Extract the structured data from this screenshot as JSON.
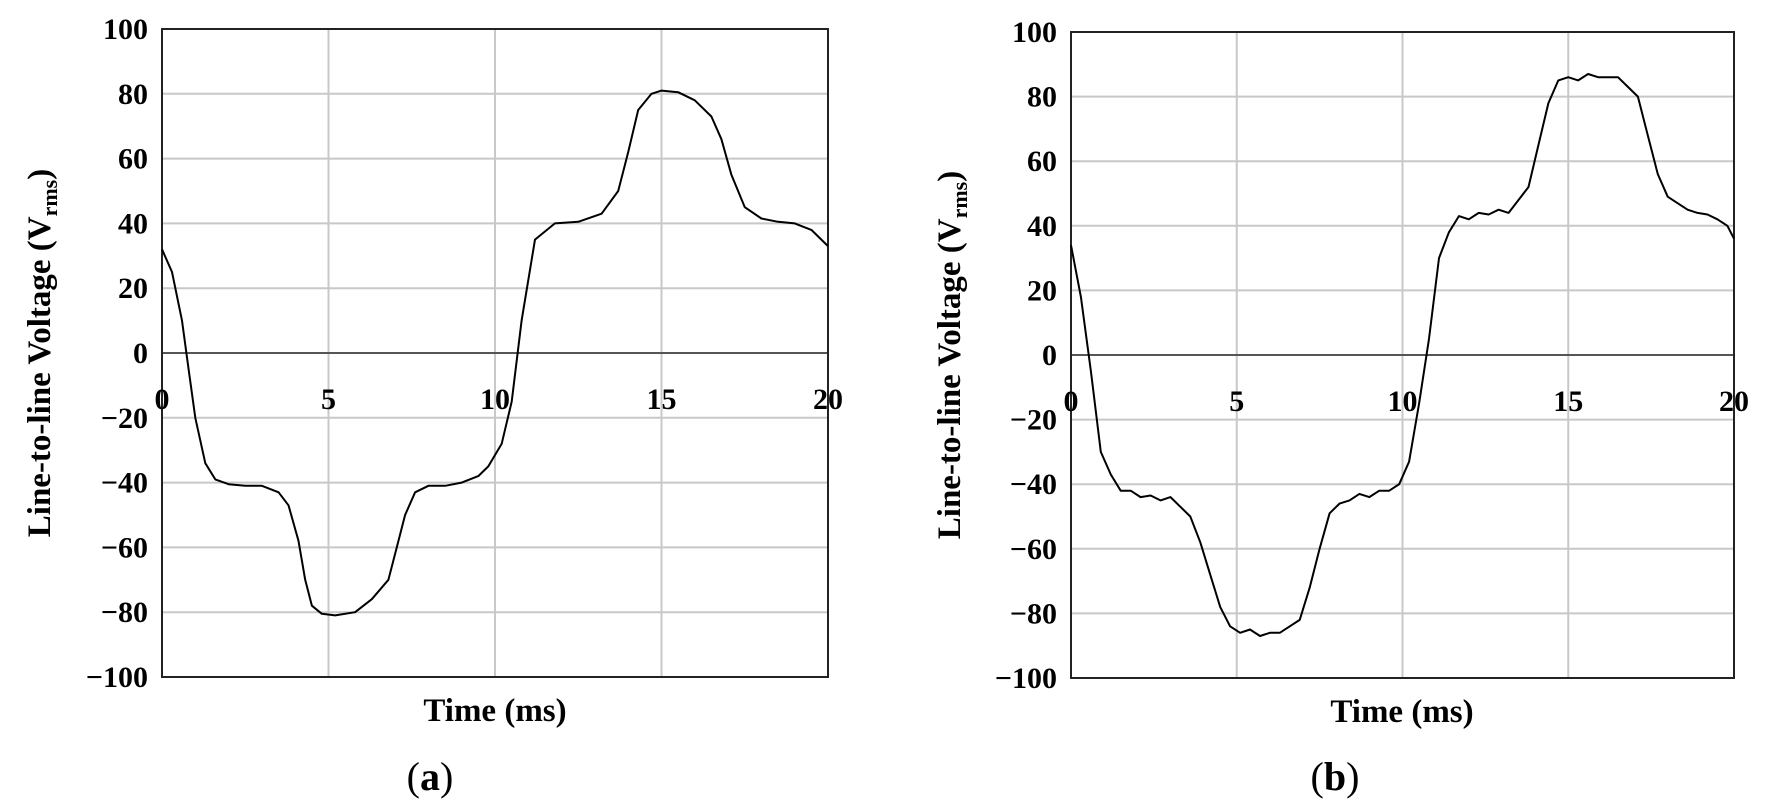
{
  "chart_data": [
    {
      "type": "line",
      "panel_label": "a",
      "xlabel": "Time (ms)",
      "ylabel": "Line-to-line Voltage (V",
      "ylabel_sub": "rms",
      "ylabel_close": ")",
      "xlim": [
        0,
        20
      ],
      "ylim": [
        -100,
        100
      ],
      "xticks": [
        0,
        5,
        10,
        15,
        20
      ],
      "yticks": [
        -100,
        -80,
        -60,
        -40,
        -20,
        0,
        20,
        40,
        60,
        80,
        100
      ],
      "grid": true,
      "series": [
        {
          "x": [
            0,
            0.3,
            0.6,
            0.8,
            1.0,
            1.3,
            1.6,
            2.0,
            2.5,
            3.0,
            3.5,
            3.8,
            4.1,
            4.3,
            4.5,
            4.8,
            5.2,
            5.8,
            6.3,
            6.8,
            7.0,
            7.3,
            7.6,
            8.0,
            8.5,
            9.0,
            9.5,
            9.8,
            10.2,
            10.5,
            10.8,
            11.2,
            11.8,
            12.5,
            13.2,
            13.7,
            14.0,
            14.3,
            14.7,
            15.0,
            15.5,
            16.0,
            16.5,
            16.8,
            17.1,
            17.5,
            18.0,
            18.5,
            19.0,
            19.5,
            20.0
          ],
          "y": [
            32,
            25,
            10,
            -5,
            -20,
            -34,
            -39,
            -40.5,
            -41,
            -41,
            -43,
            -47,
            -58,
            -70,
            -78,
            -80.5,
            -81,
            -80,
            -76,
            -70,
            -62,
            -50,
            -43,
            -41,
            -41,
            -40,
            -38,
            -35,
            -28,
            -15,
            10,
            35,
            40,
            40.5,
            43,
            50,
            62,
            75,
            80,
            81,
            80.5,
            78,
            73,
            66,
            55,
            45,
            41.5,
            40.5,
            40,
            38,
            33
          ]
        }
      ]
    },
    {
      "type": "line",
      "panel_label": "b",
      "xlabel": "Time (ms)",
      "ylabel": "Line-to-line Voltage (V",
      "ylabel_sub": "rms",
      "ylabel_close": ")",
      "xlim": [
        0,
        20
      ],
      "ylim": [
        -100,
        100
      ],
      "xticks": [
        0,
        5,
        10,
        15,
        20
      ],
      "yticks": [
        -100,
        -80,
        -60,
        -40,
        -20,
        0,
        20,
        40,
        60,
        80,
        100
      ],
      "grid": true,
      "series": [
        {
          "x": [
            0,
            0.3,
            0.6,
            0.9,
            1.2,
            1.5,
            1.8,
            2.1,
            2.4,
            2.7,
            3.0,
            3.3,
            3.6,
            3.9,
            4.2,
            4.5,
            4.8,
            5.1,
            5.4,
            5.7,
            6.0,
            6.3,
            6.6,
            6.9,
            7.2,
            7.5,
            7.8,
            8.1,
            8.4,
            8.7,
            9.0,
            9.3,
            9.6,
            9.9,
            10.2,
            10.5,
            10.8,
            11.1,
            11.4,
            11.7,
            12.0,
            12.3,
            12.6,
            12.9,
            13.2,
            13.5,
            13.8,
            14.1,
            14.4,
            14.7,
            15.0,
            15.3,
            15.6,
            15.9,
            16.2,
            16.5,
            16.8,
            17.1,
            17.4,
            17.7,
            18.0,
            18.3,
            18.6,
            18.9,
            19.2,
            19.5,
            19.8,
            20.0
          ],
          "y": [
            34,
            18,
            -5,
            -30,
            -37,
            -42,
            -42,
            -44,
            -43.5,
            -45,
            -44,
            -47,
            -50,
            -58,
            -68,
            -78,
            -84,
            -86,
            -85,
            -87,
            -86,
            -86,
            -84,
            -82,
            -72,
            -60,
            -49,
            -46,
            -45,
            -43,
            -44,
            -42,
            -42,
            -40,
            -33,
            -15,
            5,
            30,
            38,
            43,
            42,
            44,
            43.5,
            45,
            44,
            48,
            52,
            65,
            78,
            85,
            86,
            85,
            87,
            86,
            86,
            86,
            83,
            80,
            68,
            56,
            49,
            47,
            45,
            44,
            43.5,
            42,
            40,
            36
          ]
        }
      ]
    }
  ]
}
